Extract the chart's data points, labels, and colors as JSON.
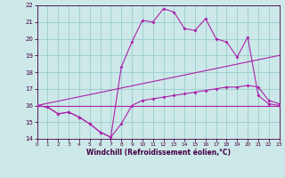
{
  "xlabel": "Windchill (Refroidissement éolien,°C)",
  "bg_color": "#cce8e8",
  "line_color": "#aa22aa",
  "grid_color": "#99cccc",
  "xlim": [
    0,
    23
  ],
  "ylim": [
    14,
    22
  ],
  "yticks": [
    14,
    15,
    16,
    17,
    18,
    19,
    20,
    21,
    22
  ],
  "xticks": [
    0,
    1,
    2,
    3,
    4,
    5,
    6,
    7,
    8,
    9,
    10,
    11,
    12,
    13,
    14,
    15,
    16,
    17,
    18,
    19,
    20,
    21,
    22,
    23
  ],
  "line1_x": [
    0,
    1,
    2,
    3,
    4,
    5,
    6,
    7,
    8,
    9,
    10,
    11,
    12,
    13,
    14,
    15,
    16,
    17,
    18,
    19,
    20,
    21,
    22,
    23
  ],
  "line1_y": [
    16.0,
    15.9,
    15.5,
    15.6,
    15.3,
    14.9,
    14.4,
    14.1,
    18.3,
    19.8,
    21.1,
    21.0,
    21.8,
    21.6,
    20.6,
    20.5,
    21.2,
    20.0,
    19.8,
    18.9,
    20.1,
    16.6,
    16.1,
    16.0
  ],
  "line2_x": [
    0,
    23
  ],
  "line2_y": [
    16.0,
    19.0
  ],
  "line3_x": [
    0,
    1,
    2,
    3,
    4,
    5,
    6,
    7,
    8,
    9,
    10,
    11,
    12,
    13,
    14,
    15,
    16,
    17,
    18,
    19,
    20,
    21,
    22,
    23
  ],
  "line3_y": [
    16.0,
    15.9,
    15.5,
    15.6,
    15.3,
    14.9,
    14.4,
    14.1,
    14.9,
    16.0,
    16.3,
    16.4,
    16.5,
    16.6,
    16.7,
    16.8,
    16.9,
    17.0,
    17.1,
    17.1,
    17.2,
    17.1,
    16.3,
    16.1
  ],
  "line4_x": [
    0,
    23
  ],
  "line4_y": [
    16.0,
    16.0
  ],
  "tick_fontsize": 5.0,
  "xlabel_fontsize": 5.5,
  "marker_size": 2.0,
  "line_width": 0.8
}
